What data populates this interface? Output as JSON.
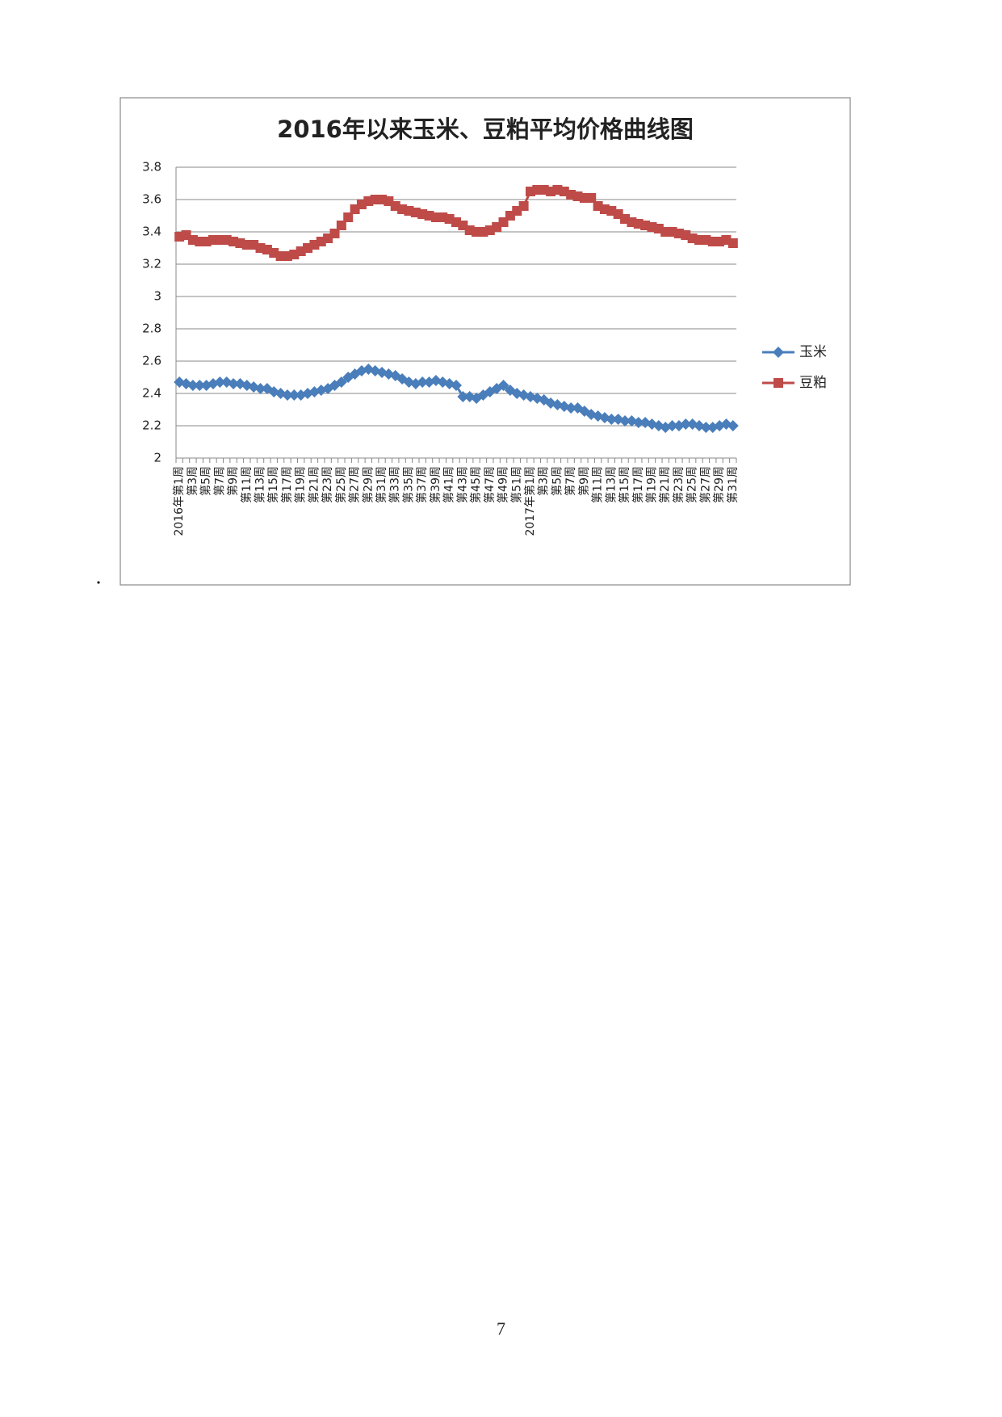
{
  "chart_data": {
    "type": "line",
    "title": "2016年以来玉米、豆粕平均价格曲线图",
    "categories": [
      "2016年第1周",
      null,
      "第3周",
      null,
      "第5周",
      null,
      "第7周",
      null,
      "第9周",
      null,
      "第11周",
      null,
      "第13周",
      null,
      "第15周",
      null,
      "第17周",
      null,
      "第19周",
      null,
      "第21周",
      null,
      "第23周",
      null,
      "第25周",
      null,
      "第27周",
      null,
      "第29周",
      null,
      "第31周",
      null,
      "第33周",
      null,
      "第35周",
      null,
      "第37周",
      null,
      "第39周",
      null,
      "第41周",
      null,
      "第43周",
      null,
      "第45周",
      null,
      "第47周",
      null,
      "第49周",
      null,
      "第51周",
      null,
      "2017年第1周",
      null,
      "第3周",
      null,
      "第5周",
      null,
      "第7周",
      null,
      "第9周",
      null,
      "第11周",
      null,
      "第13周",
      null,
      "第15周",
      null,
      "第17周",
      null,
      "第19周",
      null,
      "第21周",
      null,
      "第23周",
      null,
      "第25周",
      null,
      "第27周",
      null,
      "第29周",
      null,
      "第31周"
    ],
    "series": [
      {
        "name": "玉米",
        "color": "#4a7ebb",
        "marker": "diamond",
        "values": [
          2.47,
          2.46,
          2.45,
          2.45,
          2.45,
          2.46,
          2.47,
          2.47,
          2.46,
          2.46,
          2.45,
          2.44,
          2.43,
          2.43,
          2.41,
          2.4,
          2.39,
          2.39,
          2.39,
          2.4,
          2.41,
          2.42,
          2.43,
          2.45,
          2.47,
          2.5,
          2.52,
          2.54,
          2.55,
          2.54,
          2.53,
          2.52,
          2.51,
          2.49,
          2.47,
          2.46,
          2.47,
          2.47,
          2.48,
          2.47,
          2.46,
          2.45,
          2.38,
          2.38,
          2.37,
          2.39,
          2.41,
          2.43,
          2.45,
          2.42,
          2.4,
          2.39,
          2.38,
          2.37,
          2.36,
          2.34,
          2.33,
          2.32,
          2.31,
          2.31,
          2.29,
          2.27,
          2.26,
          2.25,
          2.24,
          2.24,
          2.23,
          2.23,
          2.22,
          2.22,
          2.21,
          2.2,
          2.19,
          2.2,
          2.2,
          2.21,
          2.21,
          2.2,
          2.19,
          2.19,
          2.2,
          2.21,
          2.2
        ]
      },
      {
        "name": "豆粕",
        "color": "#be4b48",
        "marker": "square",
        "values": [
          3.37,
          3.38,
          3.35,
          3.34,
          3.34,
          3.35,
          3.35,
          3.35,
          3.34,
          3.33,
          3.32,
          3.32,
          3.3,
          3.29,
          3.27,
          3.25,
          3.25,
          3.26,
          3.28,
          3.3,
          3.32,
          3.34,
          3.36,
          3.39,
          3.44,
          3.49,
          3.54,
          3.57,
          3.59,
          3.6,
          3.6,
          3.59,
          3.56,
          3.54,
          3.53,
          3.52,
          3.51,
          3.5,
          3.49,
          3.49,
          3.48,
          3.46,
          3.44,
          3.41,
          3.4,
          3.4,
          3.41,
          3.43,
          3.46,
          3.5,
          3.53,
          3.56,
          3.65,
          3.66,
          3.66,
          3.65,
          3.66,
          3.65,
          3.63,
          3.62,
          3.61,
          3.61,
          3.56,
          3.54,
          3.53,
          3.51,
          3.48,
          3.46,
          3.45,
          3.44,
          3.43,
          3.42,
          3.4,
          3.4,
          3.39,
          3.38,
          3.36,
          3.35,
          3.35,
          3.34,
          3.34,
          3.35,
          3.33
        ]
      }
    ],
    "ylim": [
      2,
      3.8
    ],
    "yticks": [
      2,
      2.2,
      2.4,
      2.6,
      2.8,
      3,
      3.2,
      3.4,
      3.6,
      3.8
    ],
    "grid": true,
    "legend": "right"
  },
  "page_number": "7"
}
